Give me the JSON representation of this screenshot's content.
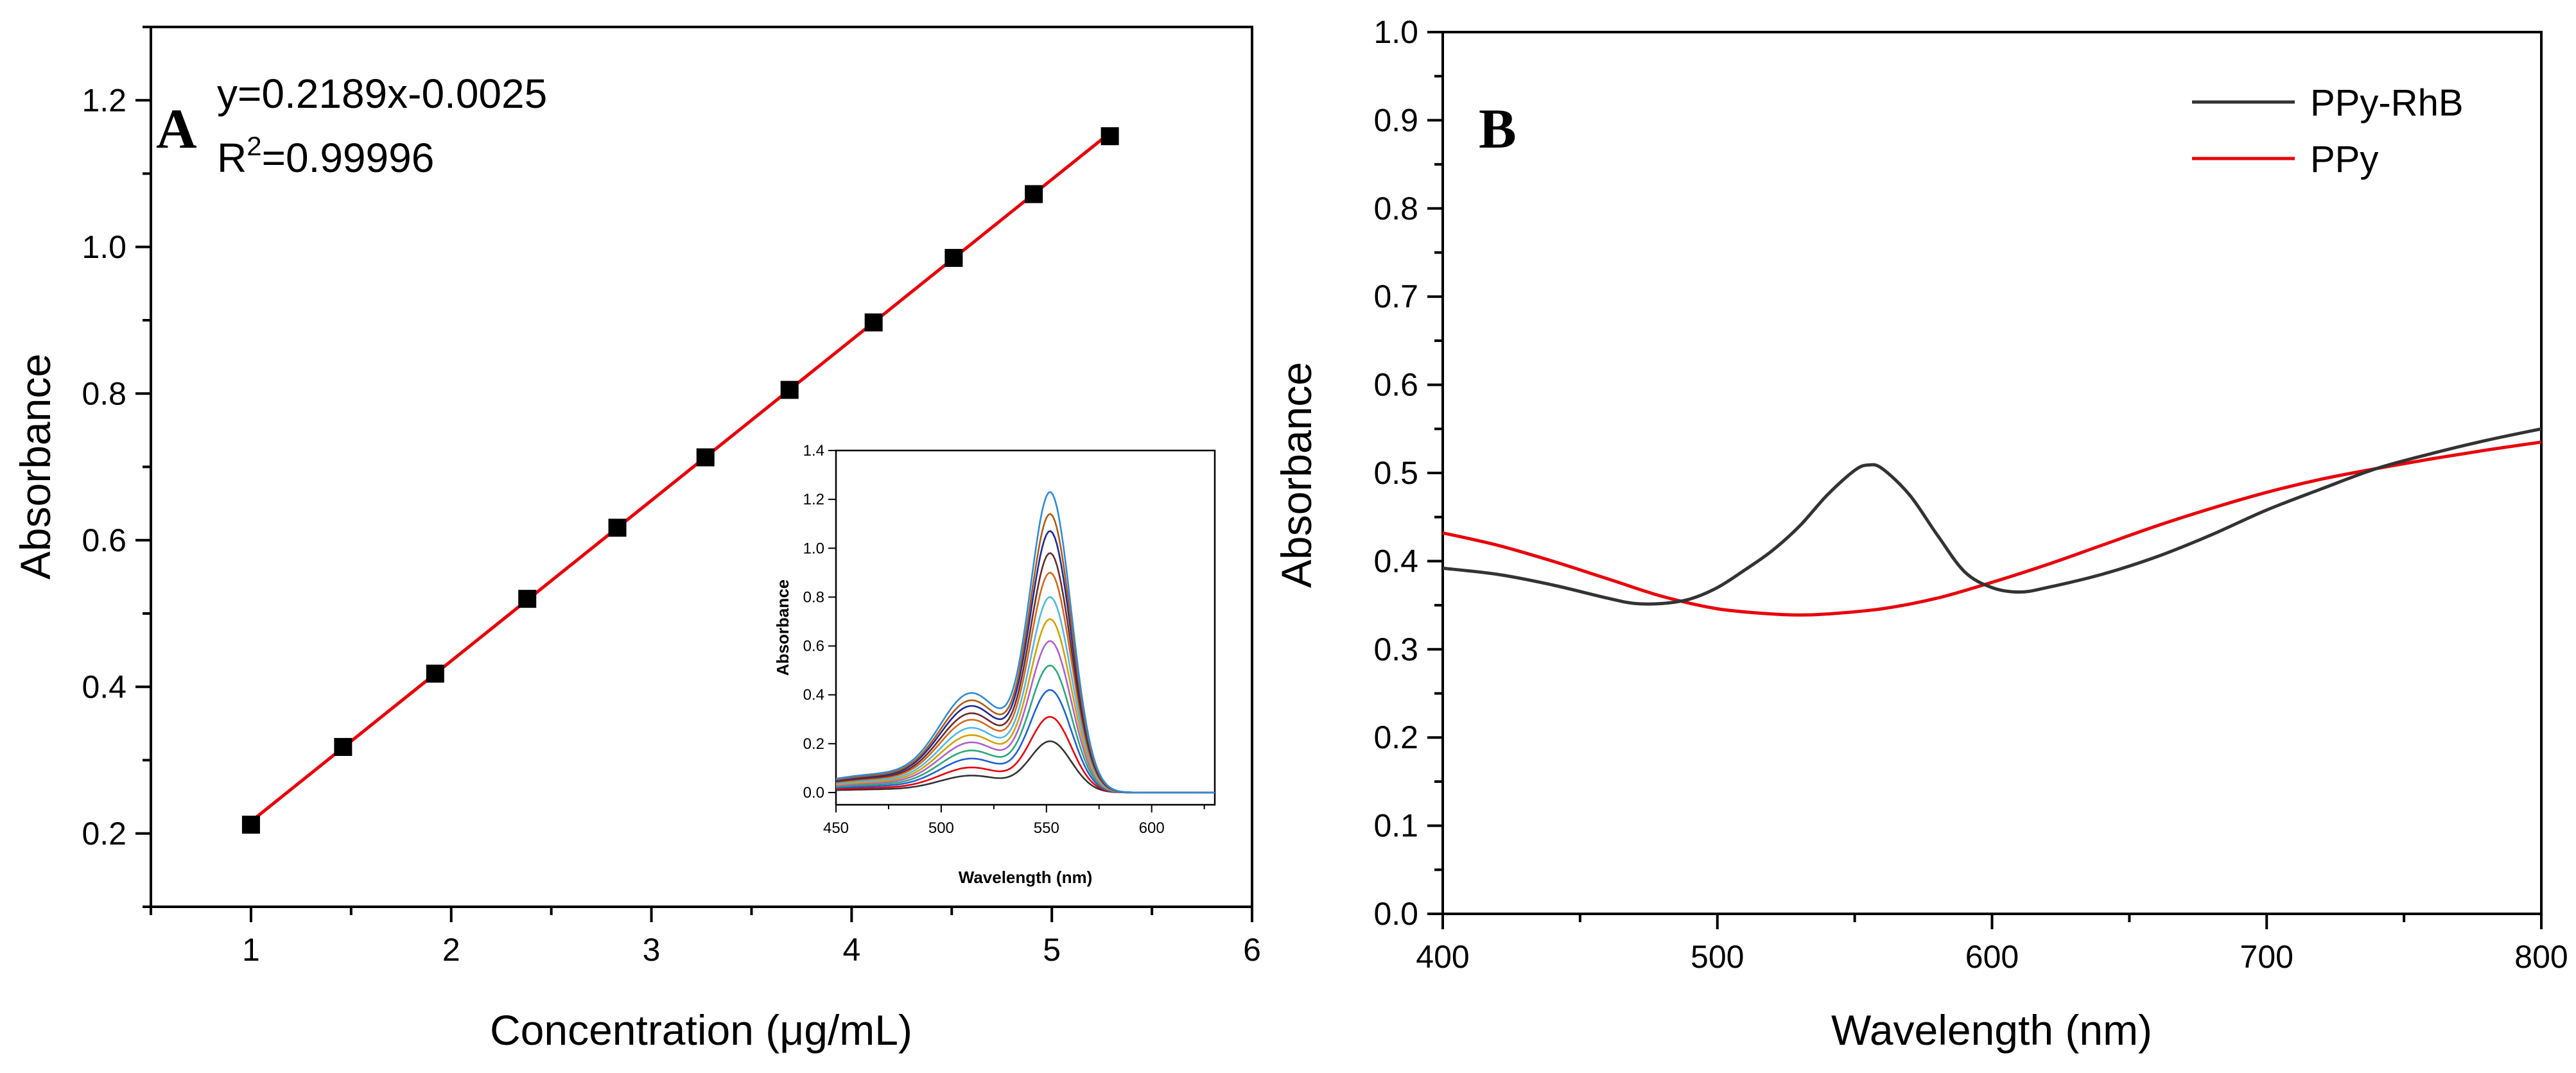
{
  "colors": {
    "fit_line": "#e8000b",
    "marker": "#000000",
    "ppy_rhb": "#333333",
    "ppy": "#e8000b",
    "inset": [
      "#333333",
      "#e8000b",
      "#1f5fd6",
      "#2aa876",
      "#b060c8",
      "#d4a000",
      "#4fb8e8",
      "#d2691e",
      "#6a2a2a",
      "#1a2a9a",
      "#b05a10",
      "#2f8bd8",
      "#22b022"
    ]
  },
  "chart_data": [
    {
      "type": "scatter",
      "panel_label": "A",
      "xlabel": "Concentration (μg/mL)",
      "ylabel": "Absorbance",
      "xlim": [
        0.5,
        6
      ],
      "ylim": [
        0.1,
        1.3
      ],
      "xticks": [
        "1",
        "2",
        "3",
        "4",
        "5",
        "6"
      ],
      "yticks": [
        "0.2",
        "0.4",
        "0.6",
        "0.8",
        "1.0",
        "1.2"
      ],
      "x": [
        1.0,
        1.46,
        1.92,
        2.38,
        2.83,
        3.27,
        3.69,
        4.11,
        4.51,
        4.91,
        5.29
      ],
      "y": [
        0.212,
        0.318,
        0.418,
        0.52,
        0.617,
        0.713,
        0.805,
        0.897,
        0.985,
        1.072,
        1.151
      ],
      "fit": {
        "slope": 0.2189,
        "intercept": -0.0025,
        "x_range": [
          1.0,
          5.29
        ]
      },
      "equation": "y=0.2189x-0.0025",
      "r2_prefix": "R",
      "r2_sup": "2",
      "r2_value": "=0.99996",
      "inset": {
        "type": "line",
        "xlabel": "Wavelength (nm)",
        "ylabel": "Absorbance",
        "xlim": [
          450,
          630
        ],
        "ylim": [
          -0.05,
          1.4
        ],
        "xticks": [
          "450",
          "500",
          "550",
          "600"
        ],
        "yticks": [
          "0.0",
          "0.2",
          "0.4",
          "0.6",
          "0.8",
          "1.0",
          "1.2",
          "1.4"
        ],
        "peak_nm": 552,
        "shoulder_nm": 515,
        "peak_values": [
          0.21,
          0.31,
          0.42,
          0.52,
          0.62,
          0.71,
          0.8,
          0.9,
          0.98,
          1.07,
          1.14,
          1.23
        ]
      }
    },
    {
      "type": "line",
      "panel_label": "B",
      "xlabel": "Wavelength (nm)",
      "ylabel": "Absorbance",
      "xlim": [
        400,
        800
      ],
      "ylim": [
        0.0,
        1.0
      ],
      "xticks": [
        "400",
        "500",
        "600",
        "700",
        "800"
      ],
      "yticks": [
        "0.0",
        "0.1",
        "0.2",
        "0.3",
        "0.4",
        "0.5",
        "0.6",
        "0.7",
        "0.8",
        "0.9",
        "1.0"
      ],
      "legend_position": "top-right",
      "series": [
        {
          "name": "PPy-RhB",
          "x": [
            400,
            420,
            440,
            460,
            470,
            480,
            490,
            500,
            510,
            520,
            530,
            540,
            550,
            555,
            560,
            570,
            580,
            590,
            600,
            610,
            620,
            640,
            660,
            680,
            700,
            720,
            740,
            760,
            780,
            800
          ],
          "y": [
            0.392,
            0.385,
            0.373,
            0.358,
            0.352,
            0.352,
            0.357,
            0.37,
            0.39,
            0.412,
            0.44,
            0.475,
            0.503,
            0.509,
            0.505,
            0.475,
            0.43,
            0.388,
            0.37,
            0.365,
            0.37,
            0.385,
            0.405,
            0.43,
            0.458,
            0.482,
            0.505,
            0.522,
            0.537,
            0.55
          ]
        },
        {
          "name": "PPy",
          "x": [
            400,
            420,
            440,
            460,
            480,
            500,
            520,
            530,
            540,
            560,
            580,
            600,
            620,
            640,
            660,
            680,
            700,
            720,
            740,
            760,
            780,
            800
          ],
          "y": [
            0.432,
            0.418,
            0.4,
            0.38,
            0.36,
            0.346,
            0.34,
            0.339,
            0.34,
            0.346,
            0.358,
            0.376,
            0.396,
            0.418,
            0.44,
            0.46,
            0.478,
            0.493,
            0.505,
            0.516,
            0.526,
            0.535
          ]
        }
      ]
    }
  ]
}
